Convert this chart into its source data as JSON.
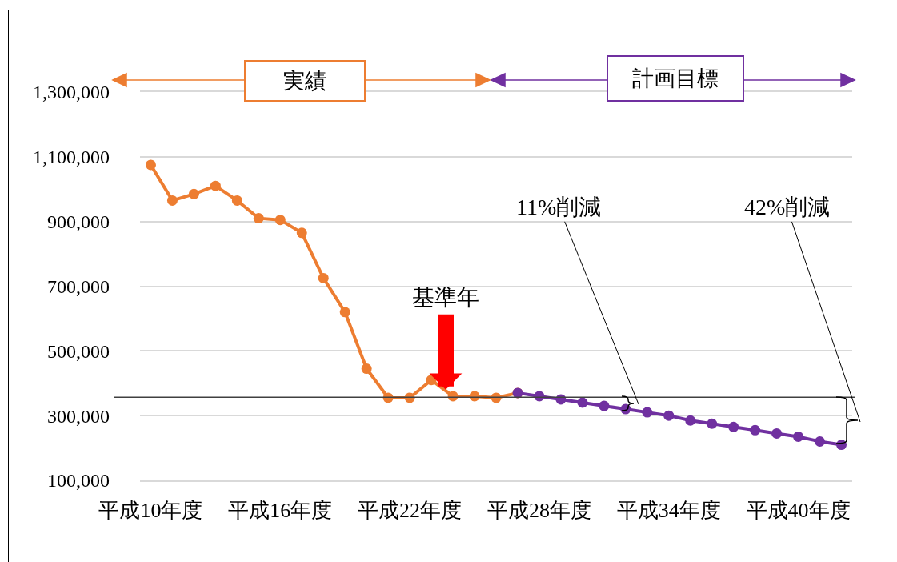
{
  "chart_data": {
    "type": "line",
    "categories": [
      "平成10年度",
      null,
      null,
      null,
      null,
      null,
      "平成16年度",
      null,
      null,
      null,
      null,
      null,
      "平成22年度",
      null,
      null,
      null,
      null,
      null,
      "平成28年度",
      null,
      null,
      null,
      null,
      null,
      "平成34年度",
      null,
      null,
      null,
      null,
      null,
      "平成40年度",
      null,
      null
    ],
    "series": [
      {
        "name": "実績",
        "color": "#ed7d31",
        "values": [
          1075000,
          965000,
          985000,
          1010000,
          965000,
          910000,
          905000,
          865000,
          725000,
          620000,
          445000,
          355000,
          355000,
          410000,
          360000,
          360000,
          355000,
          370000,
          null,
          null,
          null,
          null,
          null,
          null,
          null,
          null,
          null,
          null,
          null,
          null,
          null,
          null,
          null
        ]
      },
      {
        "name": "計画目標",
        "color": "#7030a0",
        "values": [
          null,
          null,
          null,
          null,
          null,
          null,
          null,
          null,
          null,
          null,
          null,
          null,
          null,
          null,
          null,
          null,
          null,
          370000,
          360000,
          350000,
          340000,
          330000,
          320000,
          310000,
          300000,
          285000,
          275000,
          265000,
          255000,
          245000,
          235000,
          220000,
          210000
        ]
      }
    ],
    "ylim": [
      100000,
      1300000
    ],
    "yticks": [
      {
        "value": 100000,
        "label": "100,000"
      },
      {
        "value": 300000,
        "label": "300,000"
      },
      {
        "value": 500000,
        "label": "500,000"
      },
      {
        "value": 700000,
        "label": "700,000"
      },
      {
        "value": 900000,
        "label": "900,000"
      },
      {
        "value": 1100000,
        "label": "1,100,000"
      },
      {
        "value": 1300000,
        "label": "1,300,000"
      }
    ],
    "ref_lines": [
      {
        "axis": "y",
        "value": 357000,
        "color": "#404040"
      }
    ],
    "annotations": [
      {
        "text": "基準年",
        "y": 380000
      },
      "11%削減",
      "42%削減"
    ],
    "grid": "y",
    "marker": "circle"
  }
}
